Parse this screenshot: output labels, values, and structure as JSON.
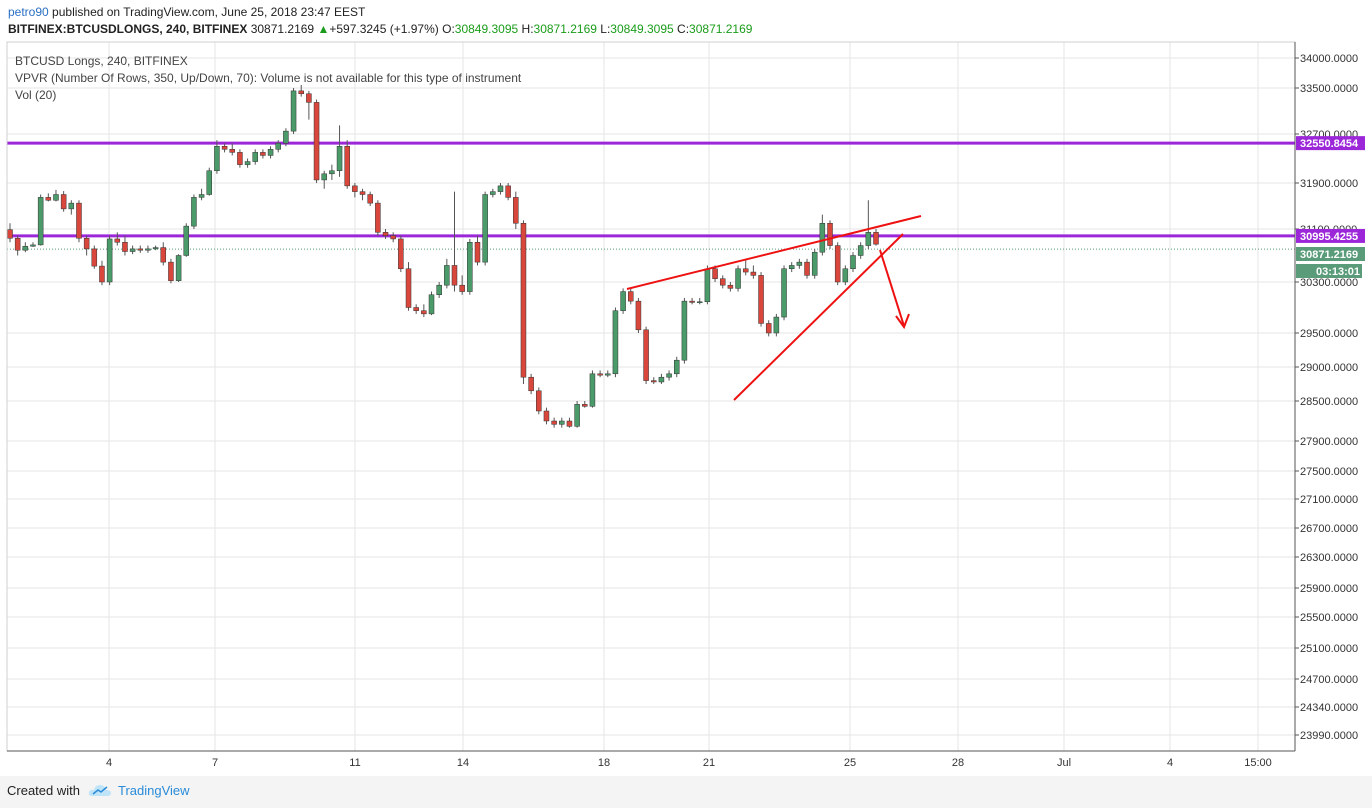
{
  "header": {
    "author": "petro90",
    "published_text": "published on TradingView.com, June 25, 2018 23:47 EEST",
    "symbol": "BITFINEX:BTCUSDLONGS, 240, BITFINEX",
    "last_price": "30871.2169",
    "change": "+597.3245 (+1.97%)",
    "o_label": "O:",
    "o_value": "30849.3095",
    "h_label": "H:",
    "h_value": "30871.2169",
    "l_label": "L:",
    "l_value": "30849.3095",
    "c_label": "C:",
    "c_value": "30871.2169",
    "up_color": "#1a9c1a"
  },
  "legend": {
    "title": "BTCUSD Longs, 240, BITFINEX",
    "vpvr": "VPVR (Number Of Rows, 350, Up/Down, 70): Volume is not available for this type of instrument",
    "vol": "Vol (20)"
  },
  "footer": {
    "created_with": "Created with",
    "brand": "TradingView",
    "icon": "tradingview-cloud-icon"
  },
  "chart_data": {
    "type": "candlestick",
    "x_tick_labels": [
      "4",
      "7",
      "11",
      "14",
      "18",
      "21",
      "25",
      "28",
      "Jul",
      "4",
      "15:00"
    ],
    "y_tick_labels": [
      "34000.0000",
      "33500.0000",
      "32700.0000",
      "31900.0000",
      "31100.0000",
      "30300.0000",
      "29500.0000",
      "29000.0000",
      "28500.0000",
      "27900.0000",
      "27500.0000",
      "27100.0000",
      "26700.0000",
      "26300.0000",
      "25900.0000",
      "25500.0000",
      "25100.0000",
      "24700.0000",
      "24340.0000",
      "23990.0000"
    ],
    "price_labels": [
      {
        "value": "32550.8454",
        "color": "#9c27d9"
      },
      {
        "value": "30995.4255",
        "color": "#9c27d9"
      },
      {
        "value": "30871.2169",
        "color": "#5a9c7a"
      },
      {
        "value": "03:13:01",
        "color": "#5a9c7a"
      }
    ],
    "horizontal_lines": [
      {
        "price": 32550.8454,
        "color": "#9c27d9"
      },
      {
        "price": 30995.4255,
        "color": "#9c27d9"
      }
    ],
    "colors": {
      "up": "#4a9a6a",
      "down": "#d9473c",
      "wick": "#555555",
      "grid": "#e6e6e6",
      "annotation": "#ee1111"
    },
    "candles": [
      [
        31090,
        31200,
        30900,
        30960
      ],
      [
        30960,
        31000,
        30700,
        30780
      ],
      [
        30780,
        30900,
        30750,
        30840
      ],
      [
        30840,
        30900,
        30830,
        30860
      ],
      [
        30860,
        31700,
        30850,
        31650
      ],
      [
        31650,
        31720,
        31580,
        31600
      ],
      [
        31600,
        31780,
        31580,
        31700
      ],
      [
        31700,
        31760,
        31400,
        31450
      ],
      [
        31450,
        31600,
        31350,
        31550
      ],
      [
        31550,
        31600,
        30900,
        30960
      ],
      [
        30960,
        31000,
        30700,
        30800
      ],
      [
        30800,
        30850,
        30500,
        30540
      ],
      [
        30540,
        30620,
        30250,
        30300
      ],
      [
        30300,
        31000,
        30250,
        30950
      ],
      [
        30950,
        31050,
        30850,
        30900
      ],
      [
        30900,
        31000,
        30700,
        30760
      ],
      [
        30760,
        30850,
        30720,
        30800
      ],
      [
        30800,
        30850,
        30740,
        30780
      ],
      [
        30780,
        30850,
        30740,
        30800
      ],
      [
        30800,
        30850,
        30780,
        30820
      ],
      [
        30820,
        30900,
        30550,
        30600
      ],
      [
        30600,
        30650,
        30280,
        30320
      ],
      [
        30320,
        30720,
        30300,
        30700
      ],
      [
        30700,
        31200,
        30680,
        31150
      ],
      [
        31150,
        31700,
        31100,
        31650
      ],
      [
        31650,
        31800,
        31600,
        31700
      ],
      [
        31700,
        32150,
        31680,
        32100
      ],
      [
        32100,
        32600,
        32050,
        32500
      ],
      [
        32500,
        32550,
        32400,
        32450
      ],
      [
        32450,
        32550,
        32350,
        32400
      ],
      [
        32400,
        32450,
        32150,
        32200
      ],
      [
        32200,
        32300,
        32150,
        32250
      ],
      [
        32250,
        32450,
        32200,
        32400
      ],
      [
        32400,
        32450,
        32300,
        32350
      ],
      [
        32350,
        32500,
        32300,
        32450
      ],
      [
        32450,
        32600,
        32400,
        32550
      ],
      [
        32550,
        32800,
        32500,
        32750
      ],
      [
        32750,
        33500,
        32700,
        33450
      ],
      [
        33450,
        33550,
        33350,
        33400
      ],
      [
        33400,
        33450,
        32950,
        33250
      ],
      [
        33250,
        33300,
        31900,
        31950
      ],
      [
        31950,
        32100,
        31800,
        32050
      ],
      [
        32050,
        32200,
        31950,
        32100
      ],
      [
        32100,
        32850,
        32000,
        32500
      ],
      [
        32500,
        32600,
        31800,
        31850
      ],
      [
        31850,
        31900,
        31650,
        31750
      ],
      [
        31750,
        31800,
        31600,
        31700
      ],
      [
        31700,
        31750,
        31500,
        31550
      ],
      [
        31550,
        31600,
        31000,
        31050
      ],
      [
        31050,
        31100,
        30950,
        31000
      ],
      [
        31000,
        31050,
        30900,
        30950
      ],
      [
        30950,
        31000,
        30450,
        30500
      ],
      [
        30500,
        30600,
        29850,
        29900
      ],
      [
        29900,
        29950,
        29800,
        29850
      ],
      [
        29850,
        29950,
        29750,
        29800
      ],
      [
        29800,
        30150,
        29780,
        30100
      ],
      [
        30100,
        30300,
        30050,
        30250
      ],
      [
        30250,
        30650,
        30200,
        30550
      ],
      [
        30550,
        31750,
        30150,
        30250
      ],
      [
        30250,
        30400,
        30100,
        30150
      ],
      [
        30150,
        30950,
        30100,
        30900
      ],
      [
        30900,
        31000,
        30550,
        30600
      ],
      [
        30600,
        31750,
        30550,
        31700
      ],
      [
        31700,
        31800,
        31650,
        31750
      ],
      [
        31750,
        31900,
        31700,
        31850
      ],
      [
        31850,
        31900,
        31600,
        31650
      ],
      [
        31650,
        31750,
        31100,
        31200
      ],
      [
        31200,
        31250,
        28750,
        28850
      ],
      [
        28850,
        28900,
        28600,
        28650
      ],
      [
        28650,
        28700,
        28300,
        28350
      ],
      [
        28350,
        28400,
        28150,
        28200
      ],
      [
        28200,
        28250,
        28100,
        28150
      ],
      [
        28150,
        28250,
        28100,
        28200
      ],
      [
        28200,
        28250,
        28100,
        28120
      ],
      [
        28120,
        28500,
        28100,
        28450
      ],
      [
        28450,
        28500,
        28400,
        28420
      ],
      [
        28420,
        28950,
        28400,
        28900
      ],
      [
        28900,
        28950,
        28850,
        28880
      ],
      [
        28880,
        28950,
        28850,
        28900
      ],
      [
        28900,
        29900,
        28850,
        29850
      ],
      [
        29850,
        30200,
        29800,
        30150
      ],
      [
        30150,
        30200,
        29950,
        30000
      ],
      [
        30000,
        30050,
        29500,
        29550
      ],
      [
        29550,
        29600,
        28750,
        28800
      ],
      [
        28800,
        28850,
        28750,
        28780
      ],
      [
        28780,
        28900,
        28750,
        28850
      ],
      [
        28850,
        28950,
        28800,
        28900
      ],
      [
        28900,
        29150,
        28850,
        29100
      ],
      [
        29100,
        30050,
        29050,
        30000
      ],
      [
        30000,
        30050,
        29950,
        29980
      ],
      [
        29980,
        30050,
        29950,
        29990
      ],
      [
        29990,
        30550,
        29950,
        30500
      ],
      [
        30500,
        30550,
        30300,
        30350
      ],
      [
        30350,
        30400,
        30200,
        30250
      ],
      [
        30250,
        30300,
        30150,
        30200
      ],
      [
        30200,
        30550,
        30150,
        30500
      ],
      [
        30500,
        30650,
        30400,
        30450
      ],
      [
        30450,
        30550,
        30350,
        30400
      ],
      [
        30400,
        30450,
        29600,
        29650
      ],
      [
        29650,
        29700,
        29450,
        29500
      ],
      [
        29500,
        29800,
        29450,
        29750
      ],
      [
        29750,
        30550,
        29700,
        30500
      ],
      [
        30500,
        30600,
        30450,
        30550
      ],
      [
        30550,
        30650,
        30500,
        30600
      ],
      [
        30600,
        30650,
        30350,
        30400
      ],
      [
        30400,
        30800,
        30350,
        30750
      ],
      [
        30750,
        31350,
        30700,
        31200
      ],
      [
        31200,
        31250,
        30800,
        30850
      ],
      [
        30850,
        30900,
        30250,
        30300
      ],
      [
        30300,
        30550,
        30250,
        30500
      ],
      [
        30500,
        30750,
        30450,
        30700
      ],
      [
        30700,
        30900,
        30650,
        30850
      ],
      [
        30850,
        31600,
        30800,
        31050
      ],
      [
        31050,
        31100,
        30850,
        30871
      ]
    ]
  }
}
